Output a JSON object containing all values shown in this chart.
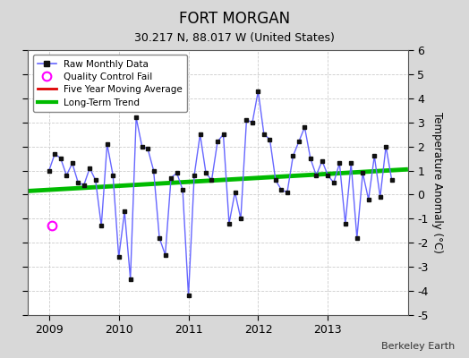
{
  "title": "FORT MORGAN",
  "subtitle": "30.217 N, 88.017 W (United States)",
  "ylabel": "Temperature Anomaly (°C)",
  "credit": "Berkeley Earth",
  "background_color": "#d8d8d8",
  "plot_bg_color": "#ffffff",
  "ylim": [
    -5,
    6
  ],
  "yticks": [
    -5,
    -4,
    -3,
    -2,
    -1,
    0,
    1,
    2,
    3,
    4,
    5,
    6
  ],
  "xlim": [
    2008.7,
    2014.15
  ],
  "raw_color": "#6666ff",
  "raw_marker_color": "#111111",
  "trend_color": "#00bb00",
  "mavg_color": "#dd0000",
  "qc_color": "#ff00ff",
  "months": [
    2009.0,
    2009.083,
    2009.167,
    2009.25,
    2009.333,
    2009.417,
    2009.5,
    2009.583,
    2009.667,
    2009.75,
    2009.833,
    2009.917,
    2010.0,
    2010.083,
    2010.167,
    2010.25,
    2010.333,
    2010.417,
    2010.5,
    2010.583,
    2010.667,
    2010.75,
    2010.833,
    2010.917,
    2011.0,
    2011.083,
    2011.167,
    2011.25,
    2011.333,
    2011.417,
    2011.5,
    2011.583,
    2011.667,
    2011.75,
    2011.833,
    2011.917,
    2012.0,
    2012.083,
    2012.167,
    2012.25,
    2012.333,
    2012.417,
    2012.5,
    2012.583,
    2012.667,
    2012.75,
    2012.833,
    2012.917,
    2013.0,
    2013.083,
    2013.167,
    2013.25,
    2013.333,
    2013.417,
    2013.5,
    2013.583,
    2013.667,
    2013.75,
    2013.833,
    2013.917
  ],
  "raw_values": [
    1.0,
    1.7,
    1.5,
    0.8,
    1.3,
    0.5,
    0.4,
    1.1,
    0.6,
    -1.3,
    2.1,
    0.8,
    -2.6,
    -0.7,
    -3.5,
    3.2,
    2.0,
    1.9,
    1.0,
    -1.8,
    -2.5,
    0.7,
    0.9,
    0.2,
    -4.2,
    0.8,
    2.5,
    0.9,
    0.6,
    2.2,
    2.5,
    -1.2,
    0.1,
    -1.0,
    3.1,
    3.0,
    4.3,
    2.5,
    2.3,
    0.6,
    0.2,
    0.1,
    1.6,
    2.2,
    2.8,
    1.5,
    0.8,
    1.4,
    0.8,
    0.5,
    1.3,
    -1.2,
    1.3,
    -1.8,
    0.9,
    -0.2,
    1.6,
    -0.1,
    2.0,
    0.6
  ],
  "qc_x": 2009.042,
  "qc_y": -1.3,
  "trend_x": [
    2008.7,
    2014.15
  ],
  "trend_y": [
    0.15,
    1.05
  ]
}
